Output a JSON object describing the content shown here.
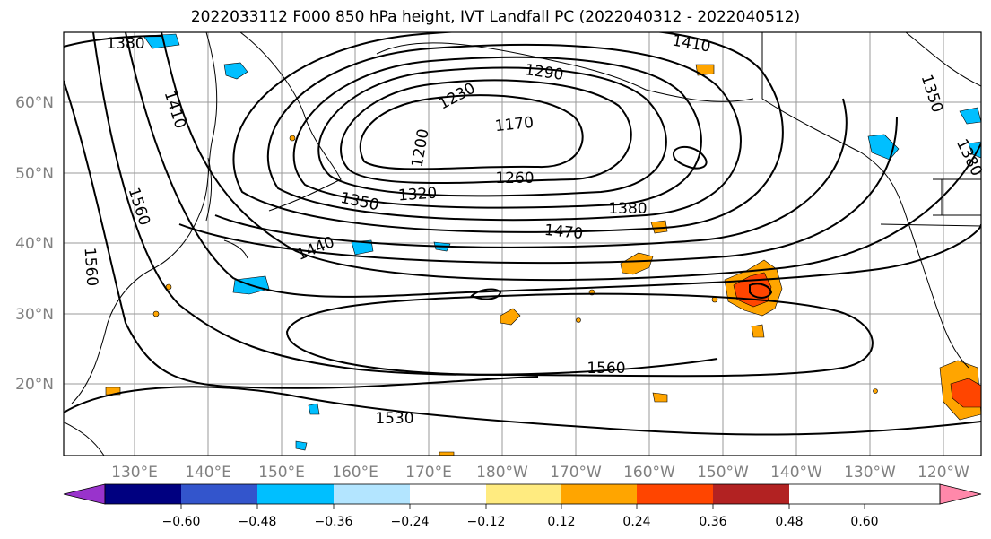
{
  "title": "2022033112 F000 850 hPa height, IVT Landfall PC (2022040312 - 2022040512)",
  "lat_labels": [
    "60°N",
    "50°N",
    "40°N",
    "30°N",
    "20°N"
  ],
  "lon_labels": [
    "130°E",
    "140°E",
    "150°E",
    "160°E",
    "170°E",
    "180°W",
    "170°W",
    "160°W",
    "150°W",
    "140°W",
    "130°W",
    "120°W"
  ],
  "contour_labels": [
    "1380",
    "1410",
    "1290",
    "1230",
    "1170",
    "1200",
    "1260",
    "1410",
    "1350",
    "1320",
    "1380",
    "1470",
    "1440",
    "1560",
    "1560",
    "1560",
    "1530",
    "1350",
    "1380"
  ],
  "colorbar": {
    "ticks": [
      "−0.60",
      "−0.48",
      "−0.36",
      "−0.24",
      "−0.12",
      "0.12",
      "0.24",
      "0.36",
      "0.48",
      "0.60"
    ],
    "colors": [
      "#9933cc",
      "#000080",
      "#3355cc",
      "#00bfff",
      "#b3e5ff",
      "#ffffff",
      "#ffeb80",
      "#ffa500",
      "#ff4500",
      "#b22222",
      "#ff88aa"
    ]
  }
}
